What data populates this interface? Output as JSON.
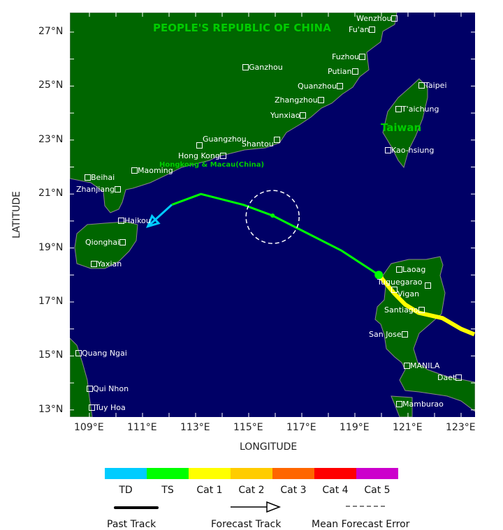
{
  "map": {
    "x_axis_title": "LONGITUDE",
    "y_axis_title": "LATITUDE",
    "lon_ticks": [
      "109°E",
      "111°E",
      "113°E",
      "115°E",
      "117°E",
      "119°E",
      "121°E",
      "123°E"
    ],
    "lat_ticks": [
      "27°N",
      "25°N",
      "23°N",
      "21°N",
      "19°N",
      "17°N",
      "15°N",
      "13°N"
    ],
    "colors": {
      "ocean": "#000066",
      "land": "#006600",
      "coast": "#888888",
      "label": "#ffffff",
      "country_label": "#00cc00"
    },
    "country_labels": {
      "china": "PEOPLE'S REPUBLIC OF CHINA",
      "taiwan": "Taiwan",
      "hongkong": "Hongkong & Macau(China)"
    },
    "cities": {
      "wenzhou": "Wenzhou",
      "fuan": "Fu'an",
      "fuzhou": "Fuzhou",
      "putian": "Putian",
      "ganzhou": "Ganzhou",
      "quanzhou": "Quanzhou",
      "zhangzhou": "Zhangzhou",
      "yunxiao": "Yunxiao",
      "guangzhou": "Guangzhou",
      "shantou": "Shantou",
      "hongkong": "Hong Kong",
      "maoming": "Maoming",
      "beihai": "Beihai",
      "zhanjiang": "Zhanjiang",
      "haikou": "Haikou",
      "qionghai": "Qionghai",
      "yaxian": "Yaxian",
      "taipei": "Taipei",
      "taichung": "T'aichung",
      "kaohsiung": "Kao-hsiung",
      "laoag": "Laoag",
      "tuguegarao": "Tuguegarao",
      "vigan": "Vigan",
      "santiago": "Santiago",
      "sanjose": "San Jose",
      "manila": "MANILA",
      "daet": "Daet",
      "mamburao": "Mamburao",
      "quangngai": "Quang Ngai",
      "quinhon": "Qui Nhon",
      "tuyhoa": "Tuy Hoa"
    }
  },
  "track": {
    "past": {
      "category": "Cat 1",
      "color": "#ffff00",
      "points": [
        [
          123.5,
          15.8
        ],
        [
          123.0,
          16.0
        ],
        [
          122.3,
          16.4
        ],
        [
          121.4,
          16.6
        ],
        [
          120.9,
          16.9
        ],
        [
          120.5,
          17.3
        ],
        [
          119.9,
          18.0
        ]
      ]
    },
    "current_position": [
      119.9,
      18.0
    ],
    "forecast_ts": {
      "category": "TS",
      "color": "#00ff00",
      "points": [
        [
          119.9,
          18.0
        ],
        [
          118.5,
          18.9
        ],
        [
          116.9,
          19.7
        ],
        [
          115.9,
          20.2
        ],
        [
          114.8,
          20.6
        ],
        [
          113.2,
          21.0
        ],
        [
          112.1,
          20.6
        ]
      ]
    },
    "forecast_td": {
      "category": "TD",
      "color": "#00ccff",
      "points": [
        [
          112.1,
          20.6
        ],
        [
          111.2,
          19.8
        ]
      ]
    },
    "forecast_point": [
      115.9,
      20.2
    ],
    "mean_error_center": [
      115.9,
      20.15
    ]
  },
  "legend": {
    "categories": [
      {
        "label": "TD",
        "color": "#00ccff"
      },
      {
        "label": "TS",
        "color": "#00ff00"
      },
      {
        "label": "Cat 1",
        "color": "#ffff00"
      },
      {
        "label": "Cat 2",
        "color": "#ffcc00"
      },
      {
        "label": "Cat 3",
        "color": "#ff6600"
      },
      {
        "label": "Cat 4",
        "color": "#ff0000"
      },
      {
        "label": "Cat 5",
        "color": "#cc00cc"
      }
    ],
    "past_track": "Past Track",
    "forecast_track": "Forecast Track",
    "mean_forecast_error": "Mean Forecast Error"
  }
}
